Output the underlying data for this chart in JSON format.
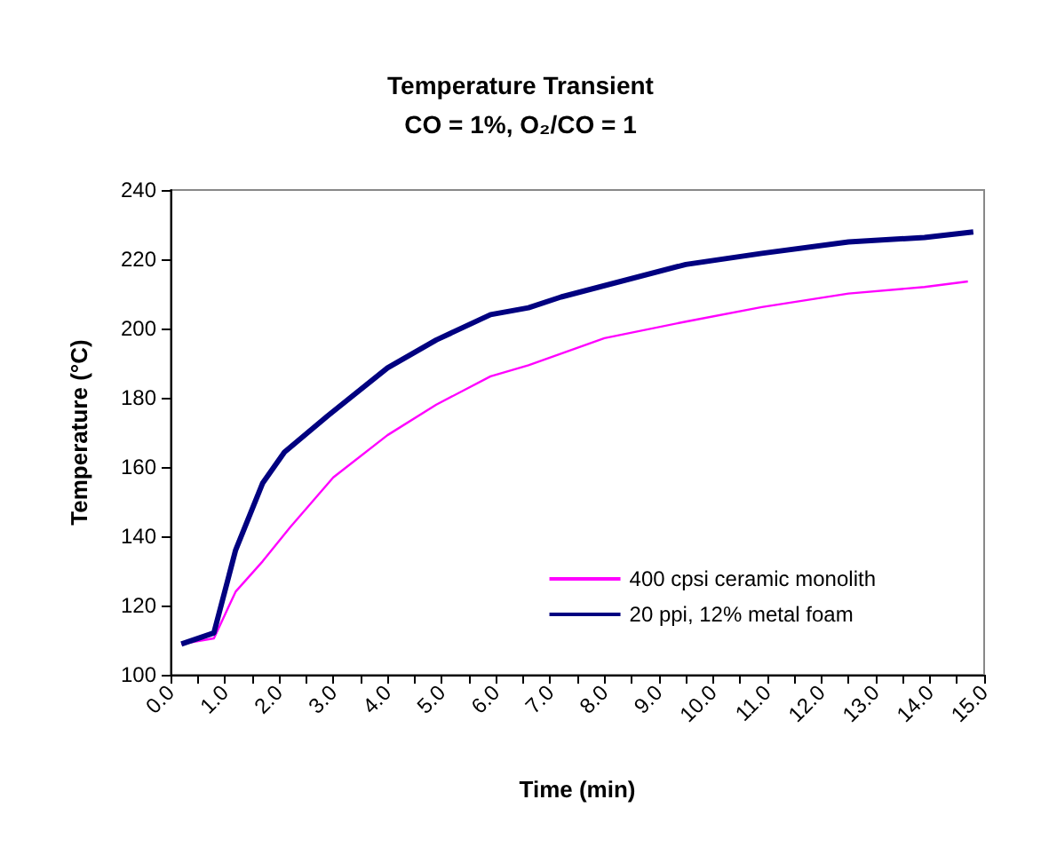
{
  "chart_data": {
    "type": "line",
    "title": "Temperature Transient",
    "subtitle": "CO = 1%, O₂/CO = 1",
    "xlabel": "Time (min)",
    "ylabel": "Temperature (°C)",
    "series": [
      {
        "name": "400 cpsi ceramic monolith",
        "color": "#ff00ff",
        "x": [
          0.2,
          0.8,
          1.2,
          1.7,
          2.2,
          3.0,
          4.0,
          4.9,
          5.9,
          6.6,
          8.0,
          9.5,
          10.9,
          12.5,
          13.9,
          14.7
        ],
        "values": [
          108.9,
          110.5,
          124,
          132.8,
          142.5,
          157,
          169.2,
          178,
          186.2,
          189.4,
          197.2,
          202,
          206.2,
          210.1,
          212,
          213.6
        ]
      },
      {
        "name": "20 ppi, 12% metal foam",
        "color": "#000080",
        "x": [
          0.2,
          0.8,
          1.2,
          1.7,
          2.1,
          2.9,
          4.0,
          4.9,
          5.9,
          6.6,
          7.2,
          9.5,
          10.9,
          12.5,
          13.9,
          14.8
        ],
        "values": [
          108.9,
          112.1,
          136,
          155.4,
          164.3,
          174.8,
          188.6,
          196.7,
          204,
          206,
          209.1,
          218.5,
          221.7,
          225,
          226.3,
          227.9
        ]
      }
    ],
    "xlim": [
      0,
      15
    ],
    "xticks": [
      {
        "value": 0,
        "label": "0.0"
      },
      {
        "value": 0.5,
        "label": null
      },
      {
        "value": 1,
        "label": "1.0"
      },
      {
        "value": 1.5,
        "label": null
      },
      {
        "value": 2,
        "label": "2.0"
      },
      {
        "value": 2.5,
        "label": null
      },
      {
        "value": 3,
        "label": "3.0"
      },
      {
        "value": 3.5,
        "label": null
      },
      {
        "value": 4,
        "label": "4.0"
      },
      {
        "value": 4.5,
        "label": null
      },
      {
        "value": 5,
        "label": "5.0"
      },
      {
        "value": 5.5,
        "label": null
      },
      {
        "value": 6,
        "label": "6.0"
      },
      {
        "value": 6.5,
        "label": null
      },
      {
        "value": 7,
        "label": "7.0"
      },
      {
        "value": 7.5,
        "label": null
      },
      {
        "value": 8,
        "label": "8.0"
      },
      {
        "value": 8.5,
        "label": null
      },
      {
        "value": 9,
        "label": "9.0"
      },
      {
        "value": 9.5,
        "label": null
      },
      {
        "value": 10,
        "label": "10.0"
      },
      {
        "value": 10.5,
        "label": null
      },
      {
        "value": 11,
        "label": "11.0"
      },
      {
        "value": 11.5,
        "label": null
      },
      {
        "value": 12,
        "label": "12.0"
      },
      {
        "value": 12.5,
        "label": null
      },
      {
        "value": 13,
        "label": "13.0"
      },
      {
        "value": 13.5,
        "label": null
      },
      {
        "value": 14,
        "label": "14.0"
      },
      {
        "value": 14.5,
        "label": null
      },
      {
        "value": 15,
        "label": "15.0"
      }
    ],
    "ylim": [
      100,
      240
    ],
    "yticks": [
      100,
      120,
      140,
      160,
      180,
      200,
      220,
      240
    ],
    "grid": false,
    "legend": "bottom right",
    "marker": "none",
    "line_style": "solid"
  }
}
